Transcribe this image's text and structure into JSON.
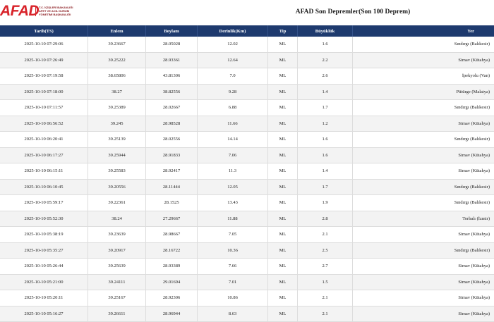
{
  "header": {
    "logo": "AFAD",
    "org_lines": [
      "T.C. İÇİŞLERİ BAKANLIĞI",
      "AFET VE ACİL DURUM",
      "YÖNETİMİ BAŞKANLIĞI"
    ],
    "title": "AFAD Son Depremler(Son 100 Deprem)"
  },
  "table": {
    "columns": [
      "Tarih(TS)",
      "Enlem",
      "Boylam",
      "Derinlik(Km)",
      "Tip",
      "Büyüklük",
      "Yer"
    ],
    "rows": [
      [
        "2025-10-10 07:29:06",
        "39.23667",
        "28.05028",
        "12.02",
        "ML",
        "1.6",
        "Sındırgı (Balıkesir)"
      ],
      [
        "2025-10-10 07:26:49",
        "39.25222",
        "28.93361",
        "12.64",
        "ML",
        "2.2",
        "Simav (Kütahya)"
      ],
      [
        "2025-10-10 07:19:58",
        "38.65806",
        "43.81306",
        "7.0",
        "ML",
        "2.6",
        "İpekyolu (Van)"
      ],
      [
        "2025-10-10 07:18:00",
        "38.27",
        "38.82556",
        "9.28",
        "ML",
        "1.4",
        "Pütürge (Malatya)"
      ],
      [
        "2025-10-10 07:11:57",
        "39.25389",
        "28.02667",
        "6.88",
        "ML",
        "1.7",
        "Sındırgı (Balıkesir)"
      ],
      [
        "2025-10-10 06:56:52",
        "39.245",
        "28.98528",
        "11.66",
        "ML",
        "1.2",
        "Simav (Kütahya)"
      ],
      [
        "2025-10-10 06:20:41",
        "39.25139",
        "28.02556",
        "14.14",
        "ML",
        "1.6",
        "Sındırgı (Balıkesir)"
      ],
      [
        "2025-10-10 06:17:27",
        "39.25944",
        "28.91833",
        "7.06",
        "ML",
        "1.6",
        "Simav (Kütahya)"
      ],
      [
        "2025-10-10 06:15:11",
        "39.25583",
        "28.92417",
        "11.3",
        "ML",
        "1.4",
        "Simav (Kütahya)"
      ],
      [
        "2025-10-10 06:10:45",
        "39.20556",
        "28.11444",
        "12.05",
        "ML",
        "1.7",
        "Sındırgı (Balıkesir)"
      ],
      [
        "2025-10-10 05:59:17",
        "39.22361",
        "28.1525",
        "13.43",
        "ML",
        "1.9",
        "Sındırgı (Balıkesir)"
      ],
      [
        "2025-10-10 05:52:30",
        "38.24",
        "27.29667",
        "11.88",
        "ML",
        "2.8",
        "Torbalı (İzmir)"
      ],
      [
        "2025-10-10 05:38:19",
        "39.23639",
        "28.98667",
        "7.05",
        "ML",
        "2.1",
        "Simav (Kütahya)"
      ],
      [
        "2025-10-10 05:35:27",
        "39.20917",
        "28.16722",
        "10.36",
        "ML",
        "2.5",
        "Sındırgı (Balıkesir)"
      ],
      [
        "2025-10-10 05:26:44",
        "39.25639",
        "28.93389",
        "7.66",
        "ML",
        "2.7",
        "Simav (Kütahya)"
      ],
      [
        "2025-10-10 05:21:00",
        "39.24111",
        "29.01694",
        "7.01",
        "ML",
        "1.5",
        "Simav (Kütahya)"
      ],
      [
        "2025-10-10 05:20:11",
        "39.25167",
        "28.92306",
        "10.86",
        "ML",
        "2.1",
        "Simav (Kütahya)"
      ],
      [
        "2025-10-10 05:16:27",
        "39.26611",
        "28.96944",
        "8.63",
        "ML",
        "2.1",
        "Simav (Kütahya)"
      ]
    ]
  }
}
